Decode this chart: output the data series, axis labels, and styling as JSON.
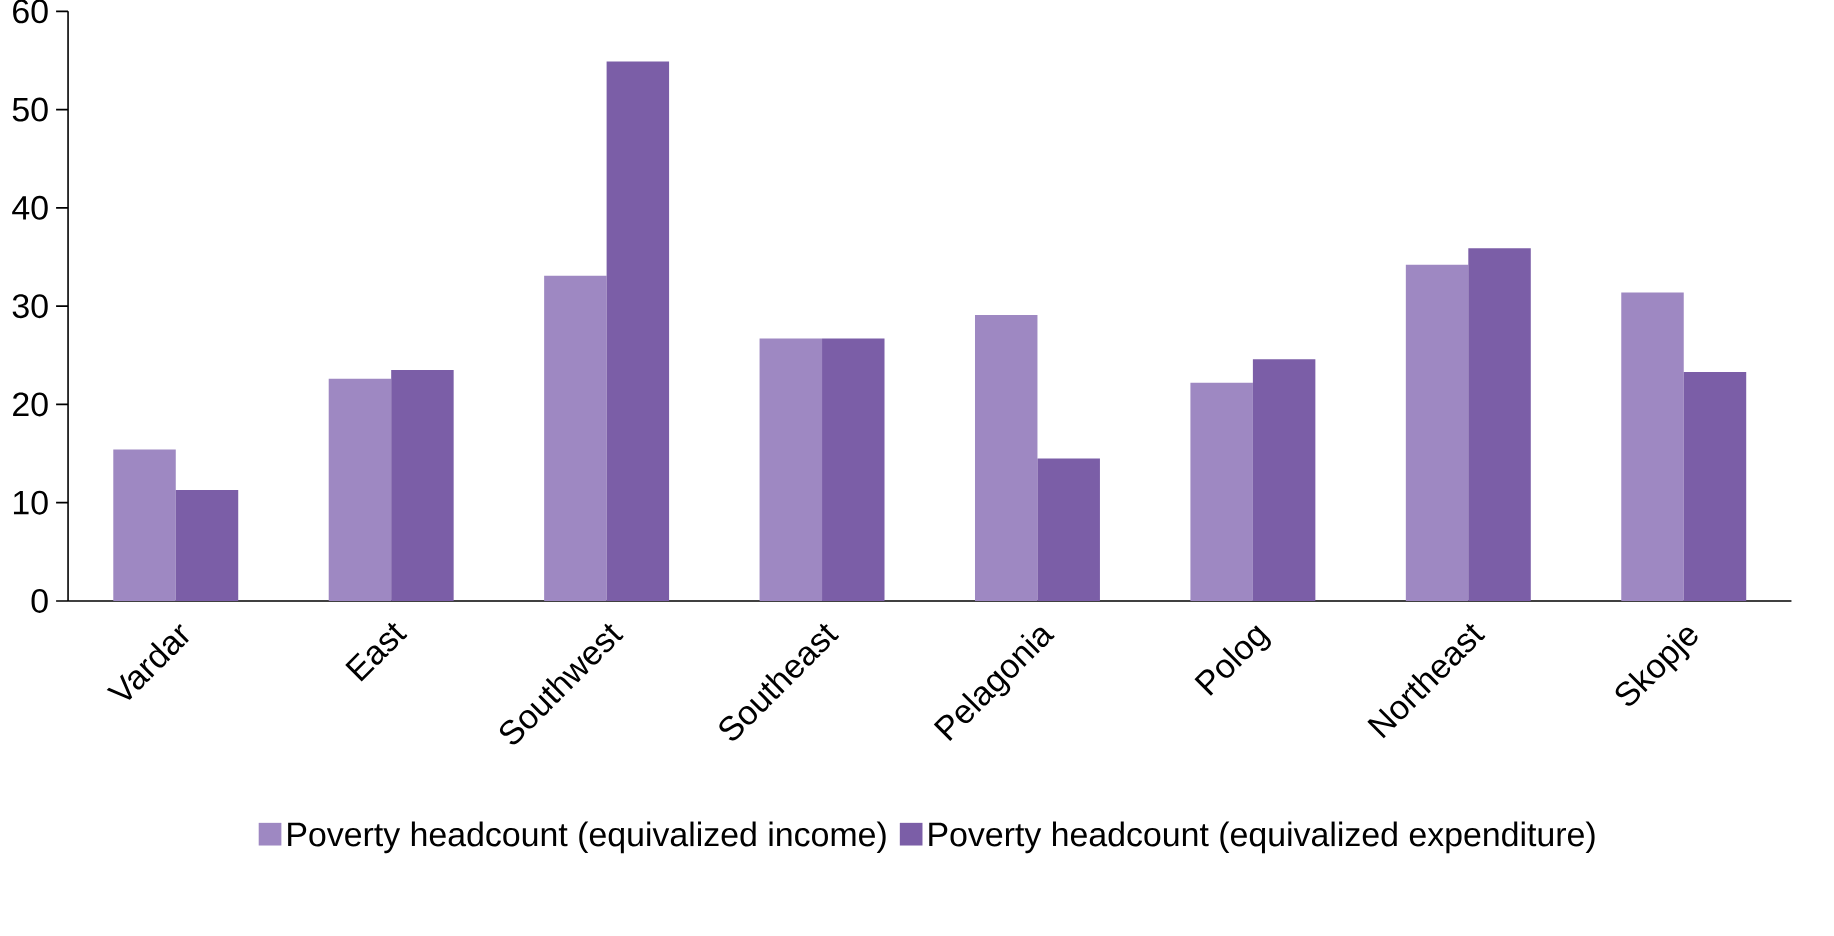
{
  "chart_data": {
    "type": "bar",
    "categories": [
      "Vardar",
      "East",
      "Southwest",
      "Southeast",
      "Pelagonia",
      "Polog",
      "Northeast",
      "Skopje"
    ],
    "series": [
      {
        "name": "Poverty headcount (equivalized income)",
        "color": "#9e88c2",
        "values": [
          15.4,
          22.6,
          33.1,
          26.7,
          29.1,
          22.2,
          34.2,
          31.4
        ]
      },
      {
        "name": "Poverty headcount (equivalized expenditure)",
        "color": "#7b5ea7",
        "values": [
          11.3,
          23.5,
          54.9,
          26.7,
          14.5,
          24.6,
          35.9,
          23.3
        ]
      }
    ],
    "ylim": [
      0,
      60
    ],
    "yticks": [
      0,
      10,
      20,
      30,
      40,
      50,
      60
    ],
    "grid": false,
    "legend": "bottom"
  }
}
